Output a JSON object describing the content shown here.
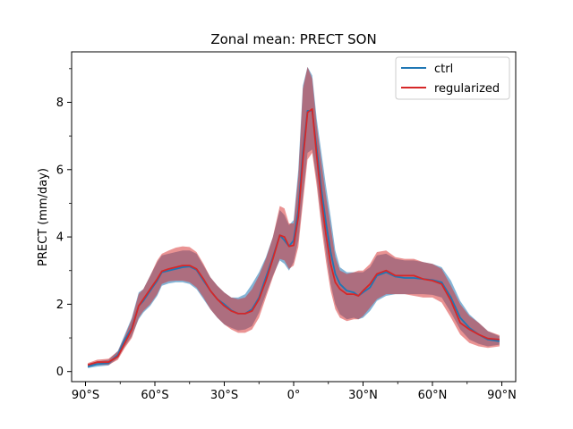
{
  "chart_data": {
    "type": "line",
    "title": "Zonal mean: PRECT SON",
    "xlabel": "",
    "ylabel": "PRECT (mm/day)",
    "xlim": [
      -96,
      96
    ],
    "ylim": [
      -0.3,
      9.5
    ],
    "xticks": [
      {
        "value": -90,
        "label": "90°S"
      },
      {
        "value": -60,
        "label": "60°S"
      },
      {
        "value": -30,
        "label": "30°S"
      },
      {
        "value": 0,
        "label": "0°"
      },
      {
        "value": 30,
        "label": "30°N"
      },
      {
        "value": 60,
        "label": "60°N"
      },
      {
        "value": 90,
        "label": "90°N"
      }
    ],
    "xminor": [
      -75,
      -45,
      -15,
      15,
      45,
      75
    ],
    "yticks": [
      {
        "value": 0,
        "label": "0"
      },
      {
        "value": 2,
        "label": "2"
      },
      {
        "value": 4,
        "label": "4"
      },
      {
        "value": 6,
        "label": "6"
      },
      {
        "value": 8,
        "label": "8"
      }
    ],
    "yminor": [
      1,
      3,
      5,
      7,
      9
    ],
    "legend_position": "upper-right",
    "x": [
      -89,
      -85,
      -80,
      -76,
      -73,
      -70,
      -67,
      -65,
      -62,
      -59,
      -57,
      -54,
      -51,
      -48,
      -45,
      -42,
      -39,
      -36,
      -33,
      -30,
      -27,
      -24,
      -21,
      -18,
      -15,
      -12,
      -9,
      -6,
      -4,
      -2,
      0,
      2,
      4,
      6,
      8,
      10,
      12,
      14,
      16,
      18,
      20,
      23,
      26,
      28,
      30,
      33,
      36,
      40,
      44,
      48,
      52,
      56,
      60,
      64,
      68,
      72,
      76,
      80,
      84,
      89
    ],
    "series": [
      {
        "name": "ctrl",
        "color": "#1f77b4",
        "mean": [
          0.15,
          0.22,
          0.25,
          0.5,
          0.95,
          1.3,
          1.95,
          2.1,
          2.4,
          2.7,
          2.95,
          3.0,
          3.05,
          3.1,
          3.12,
          3.02,
          2.7,
          2.4,
          2.15,
          2.0,
          1.82,
          1.72,
          1.72,
          1.85,
          2.2,
          2.8,
          3.4,
          4.05,
          3.9,
          3.72,
          3.9,
          4.8,
          6.5,
          7.75,
          7.75,
          6.6,
          5.4,
          4.4,
          3.55,
          2.9,
          2.6,
          2.4,
          2.35,
          2.25,
          2.35,
          2.5,
          2.85,
          2.95,
          2.82,
          2.78,
          2.78,
          2.75,
          2.72,
          2.65,
          2.2,
          1.6,
          1.3,
          1.1,
          0.95,
          0.9
        ],
        "upper": [
          0.22,
          0.3,
          0.35,
          0.62,
          1.1,
          1.6,
          2.35,
          2.45,
          2.85,
          3.25,
          3.45,
          3.5,
          3.55,
          3.6,
          3.6,
          3.5,
          3.15,
          2.8,
          2.55,
          2.35,
          2.2,
          2.2,
          2.3,
          2.6,
          2.95,
          3.4,
          4.0,
          4.8,
          4.65,
          4.35,
          4.5,
          6.0,
          8.5,
          9.05,
          8.8,
          7.5,
          6.5,
          5.5,
          4.6,
          3.6,
          3.1,
          2.95,
          2.95,
          2.95,
          2.95,
          3.1,
          3.45,
          3.5,
          3.35,
          3.3,
          3.3,
          3.25,
          3.2,
          3.1,
          2.7,
          2.1,
          1.7,
          1.45,
          1.2,
          1.05
        ],
        "lower": [
          0.1,
          0.15,
          0.18,
          0.4,
          0.75,
          1.05,
          1.55,
          1.75,
          1.95,
          2.25,
          2.55,
          2.62,
          2.65,
          2.65,
          2.6,
          2.45,
          2.15,
          1.85,
          1.6,
          1.4,
          1.3,
          1.22,
          1.25,
          1.35,
          1.75,
          2.3,
          2.85,
          3.3,
          3.2,
          3.0,
          3.25,
          3.9,
          5.2,
          6.5,
          6.6,
          5.7,
          4.5,
          3.5,
          2.6,
          2.0,
          1.7,
          1.55,
          1.6,
          1.55,
          1.6,
          1.8,
          2.1,
          2.25,
          2.3,
          2.3,
          2.3,
          2.3,
          2.28,
          2.2,
          1.75,
          1.25,
          0.95,
          0.82,
          0.75,
          0.8
        ]
      },
      {
        "name": "regularized",
        "color": "#d62728",
        "mean": [
          0.2,
          0.28,
          0.28,
          0.45,
          0.85,
          1.25,
          1.95,
          2.15,
          2.45,
          2.75,
          2.98,
          3.05,
          3.1,
          3.15,
          3.15,
          3.05,
          2.75,
          2.4,
          2.15,
          1.95,
          1.8,
          1.72,
          1.72,
          1.8,
          2.15,
          2.7,
          3.35,
          4.05,
          4.0,
          3.72,
          3.75,
          4.6,
          6.3,
          7.7,
          7.8,
          6.4,
          5.1,
          4.05,
          3.2,
          2.65,
          2.45,
          2.3,
          2.3,
          2.25,
          2.4,
          2.6,
          2.9,
          3.0,
          2.85,
          2.85,
          2.85,
          2.75,
          2.7,
          2.6,
          2.1,
          1.45,
          1.25,
          1.1,
          0.98,
          0.95
        ],
        "upper": [
          0.25,
          0.35,
          0.38,
          0.6,
          1.05,
          1.55,
          2.3,
          2.45,
          2.85,
          3.3,
          3.5,
          3.6,
          3.68,
          3.72,
          3.7,
          3.55,
          3.2,
          2.8,
          2.55,
          2.35,
          2.2,
          2.15,
          2.2,
          2.45,
          2.85,
          3.35,
          4.0,
          4.92,
          4.85,
          4.4,
          4.4,
          5.8,
          8.4,
          9.05,
          8.7,
          7.3,
          6.2,
          5.2,
          4.3,
          3.4,
          3.0,
          2.9,
          2.95,
          3.0,
          3.0,
          3.2,
          3.55,
          3.6,
          3.4,
          3.35,
          3.35,
          3.25,
          3.2,
          3.05,
          2.55,
          2.0,
          1.65,
          1.45,
          1.2,
          1.08
        ],
        "lower": [
          0.15,
          0.2,
          0.2,
          0.35,
          0.7,
          1.0,
          1.6,
          1.8,
          2.0,
          2.3,
          2.6,
          2.68,
          2.7,
          2.7,
          2.65,
          2.5,
          2.2,
          1.85,
          1.6,
          1.4,
          1.25,
          1.15,
          1.15,
          1.25,
          1.6,
          2.2,
          2.8,
          3.35,
          3.3,
          3.05,
          3.15,
          3.7,
          5.0,
          6.3,
          6.5,
          5.5,
          4.3,
          3.25,
          2.4,
          1.85,
          1.6,
          1.5,
          1.55,
          1.55,
          1.65,
          1.9,
          2.15,
          2.3,
          2.3,
          2.3,
          2.25,
          2.2,
          2.2,
          2.05,
          1.6,
          1.1,
          0.85,
          0.75,
          0.7,
          0.75
        ]
      }
    ]
  }
}
